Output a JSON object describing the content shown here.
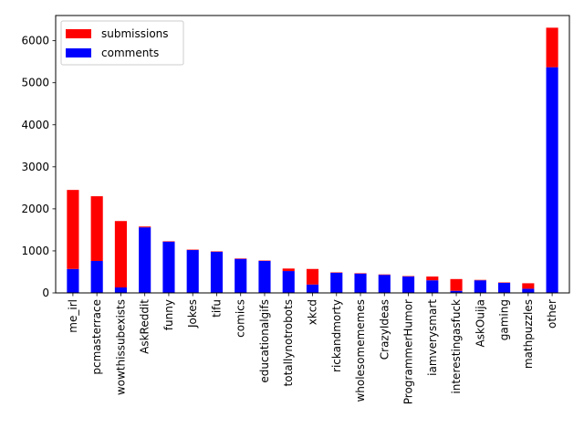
{
  "chart_data": {
    "type": "bar",
    "stacked": true,
    "categories": [
      "me_irl",
      "pcmasterrace",
      "wowthissubexists",
      "AskReddit",
      "funny",
      "Jokes",
      "tifu",
      "comics",
      "educationalgifs",
      "totallynotrobots",
      "xkcd",
      "rickandmorty",
      "wholesomememes",
      "CrazyIdeas",
      "ProgrammerHumor",
      "iamverysmart",
      "interestingasfuck",
      "AskOuija",
      "gaming",
      "mathpuzzles",
      "other"
    ],
    "series": [
      {
        "name": "comments",
        "color": "#0000ff",
        "values": [
          570,
          760,
          130,
          1560,
          1220,
          1020,
          980,
          810,
          760,
          520,
          200,
          480,
          460,
          430,
          390,
          300,
          50,
          300,
          240,
          100,
          5370
        ]
      },
      {
        "name": "submissions",
        "color": "#ff0000",
        "values": [
          1880,
          1540,
          1580,
          20,
          10,
          10,
          10,
          10,
          10,
          60,
          370,
          10,
          10,
          10,
          10,
          90,
          280,
          10,
          10,
          130,
          940
        ]
      }
    ],
    "legend_order": [
      "submissions",
      "comments"
    ],
    "legend_position": "top-left",
    "ylim": [
      0,
      6600
    ],
    "yticks": [
      0,
      1000,
      2000,
      3000,
      4000,
      5000,
      6000
    ],
    "xlabel": "",
    "ylabel": "",
    "title": "",
    "grid": false
  }
}
